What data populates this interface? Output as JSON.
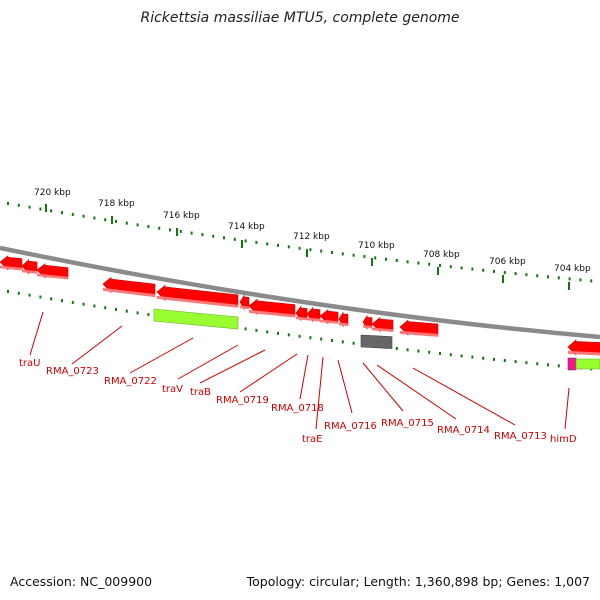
{
  "title": "Rickettsia massiliae MTU5, complete genome",
  "footer": {
    "accession": "Accession: NC_009900",
    "summary": "Topology: circular; Length: 1,360,898 bp; Genes: 1,007"
  },
  "scale_ticks": [
    {
      "label": "720 kbp"
    },
    {
      "label": "718 kbp"
    },
    {
      "label": "716 kbp"
    },
    {
      "label": "714 kbp"
    },
    {
      "label": "712 kbp"
    },
    {
      "label": "710 kbp"
    },
    {
      "label": "708 kbp"
    },
    {
      "label": "706 kbp"
    },
    {
      "label": "704 kbp"
    }
  ],
  "gene_labels": [
    {
      "label": "traU"
    },
    {
      "label": "RMA_0723"
    },
    {
      "label": "RMA_0722"
    },
    {
      "label": "traV"
    },
    {
      "label": "traB"
    },
    {
      "label": "RMA_0719"
    },
    {
      "label": "RMA_0718"
    },
    {
      "label": "traE"
    },
    {
      "label": "RMA_0716"
    },
    {
      "label": "RMA_0715"
    },
    {
      "label": "RMA_0714"
    },
    {
      "label": "RMA_0713"
    },
    {
      "label": "himD"
    }
  ],
  "colors": {
    "cds": "#ff0000",
    "cds_light": "#ff7777",
    "gene": "#99ff33",
    "gene_dark": "#66aa22",
    "pseudo": "#666666",
    "backbone": "#8c8c8c",
    "tick": "#117711",
    "label": "#cc0000",
    "accent": "#ff1493"
  }
}
